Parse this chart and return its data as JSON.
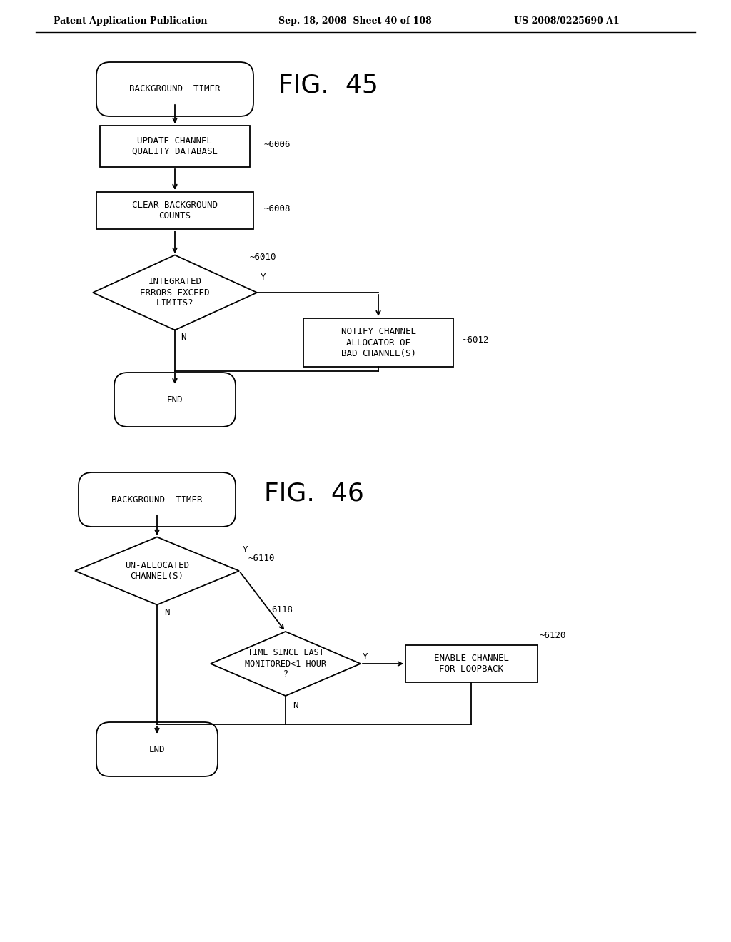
{
  "bg_color": "#ffffff",
  "header_left": "Patent Application Publication",
  "header_mid": "Sep. 18, 2008  Sheet 40 of 108",
  "header_right": "US 2008/0225690 A1",
  "fig45_title": "FIG.  45",
  "fig46_title": "FIG.  46"
}
